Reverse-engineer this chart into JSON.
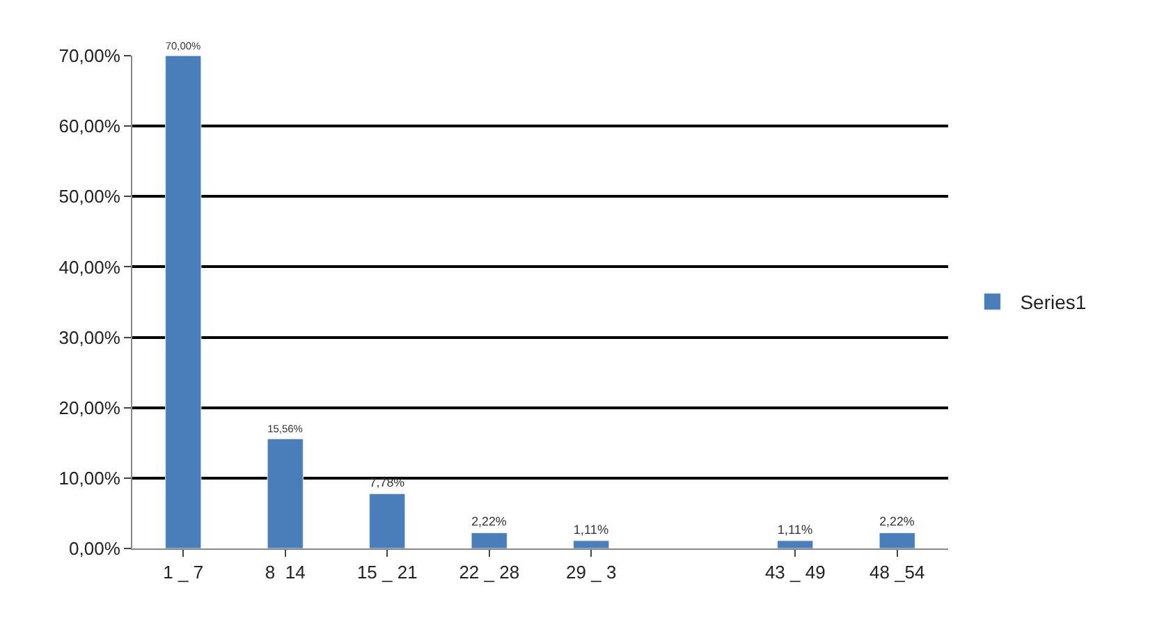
{
  "chart_data": {
    "type": "bar",
    "categories": [
      "1 _ 7",
      "8  14",
      "15 _ 21",
      "22 _ 28",
      "29 _ 3",
      null,
      "43 _ 49",
      "48 _54"
    ],
    "series": [
      {
        "name": "Series1",
        "color": "#4a7ebb",
        "values": [
          70.0,
          15.56,
          7.78,
          2.22,
          1.11,
          null,
          1.11,
          2.22
        ],
        "value_labels": [
          "70,00%",
          "15,56%",
          "7,78%",
          "2,22%",
          "1,11%",
          null,
          "1,11%",
          "2,22%"
        ]
      }
    ],
    "ylim": [
      0,
      70
    ],
    "yticks": [
      {
        "value": 0,
        "label": "0,00%"
      },
      {
        "value": 10,
        "label": "10,00%"
      },
      {
        "value": 20,
        "label": "20,00%"
      },
      {
        "value": 30,
        "label": "30,00%"
      },
      {
        "value": 40,
        "label": "40,00%"
      },
      {
        "value": 50,
        "label": "50,00%"
      },
      {
        "value": 60,
        "label": "60,00%"
      },
      {
        "value": 70,
        "label": "70,00%"
      }
    ],
    "grid": "y",
    "legend": "right"
  }
}
